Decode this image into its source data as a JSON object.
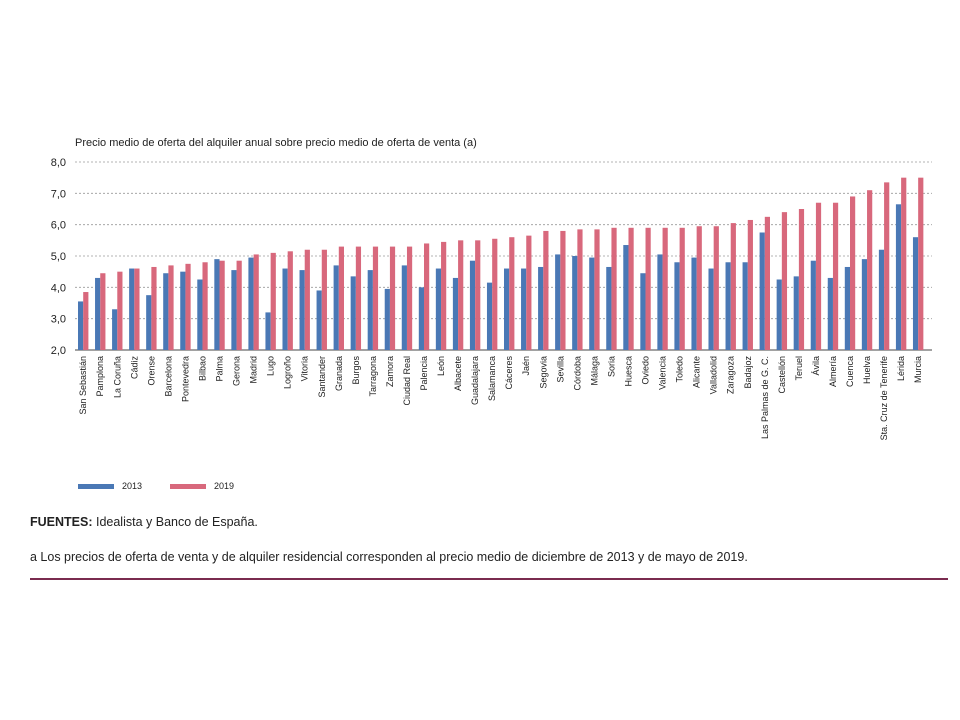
{
  "chart_data": {
    "type": "bar",
    "title": "Precio medio de oferta del alquiler anual sobre precio medio de oferta de venta (a)",
    "ylim": [
      2.0,
      8.0
    ],
    "yticks": [
      "2,0",
      "3,0",
      "4,0",
      "5,0",
      "6,0",
      "7,0",
      "8,0"
    ],
    "categories": [
      "San Sebastián",
      "Pamplona",
      "La Coruña",
      "Cádiz",
      "Orense",
      "Barcelona",
      "Pontevedra",
      "Bilbao",
      "Palma",
      "Gerona",
      "Madrid",
      "Lugo",
      "Logroño",
      "Vitoria",
      "Santander",
      "Granada",
      "Burgos",
      "Tarragona",
      "Zamora",
      "Ciudad Real",
      "Palencia",
      "León",
      "Albacete",
      "Guadalajara",
      "Salamanca",
      "Cáceres",
      "Jaén",
      "Segovia",
      "Sevilla",
      "Córdoba",
      "Málaga",
      "Soria",
      "Huesca",
      "Oviedo",
      "Valencia",
      "Toledo",
      "Alicante",
      "Valladolid",
      "Zaragoza",
      "Badajoz",
      "Las Palmas de G. C.",
      "Castellón",
      "Teruel",
      "Ávila",
      "Almería",
      "Cuenca",
      "Huelva",
      "Sta. Cruz de Tenerife",
      "Lérida",
      "Murcia"
    ],
    "series": [
      {
        "name": "2013",
        "color": "#4a78b5",
        "values": [
          3.55,
          4.3,
          3.3,
          4.6,
          3.75,
          4.45,
          4.5,
          4.25,
          4.9,
          4.55,
          4.95,
          3.2,
          4.6,
          4.55,
          3.9,
          4.7,
          4.35,
          4.55,
          3.95,
          4.7,
          4.0,
          4.6,
          4.3,
          4.85,
          4.15,
          4.6,
          4.6,
          4.65,
          5.05,
          5.0,
          4.95,
          4.65,
          5.35,
          4.45,
          5.05,
          4.8,
          4.95,
          4.6,
          4.8,
          4.8,
          5.75,
          4.25,
          4.35,
          4.85,
          4.3,
          4.65,
          4.9,
          5.2,
          6.65,
          5.6
        ]
      },
      {
        "name": "2019",
        "color": "#d8687c",
        "values": [
          3.85,
          4.45,
          4.5,
          4.6,
          4.65,
          4.7,
          4.75,
          4.8,
          4.85,
          4.85,
          5.05,
          5.1,
          5.15,
          5.2,
          5.2,
          5.3,
          5.3,
          5.3,
          5.3,
          5.3,
          5.4,
          5.45,
          5.5,
          5.5,
          5.55,
          5.6,
          5.65,
          5.8,
          5.8,
          5.85,
          5.85,
          5.9,
          5.9,
          5.9,
          5.9,
          5.9,
          5.95,
          5.95,
          6.05,
          6.15,
          6.25,
          6.4,
          6.5,
          6.7,
          6.7,
          6.9,
          7.1,
          7.35,
          7.5,
          7.5
        ]
      }
    ]
  },
  "legend": {
    "label_2013": "2013",
    "label_2019": "2019"
  },
  "sources": {
    "label": "FUENTES:",
    "text": " Idealista y Banco de España."
  },
  "footnote": {
    "text": "a  Los precios de oferta de venta y de alquiler residencial corresponden al precio medio de diciembre de 2013 y de mayo de 2019."
  }
}
